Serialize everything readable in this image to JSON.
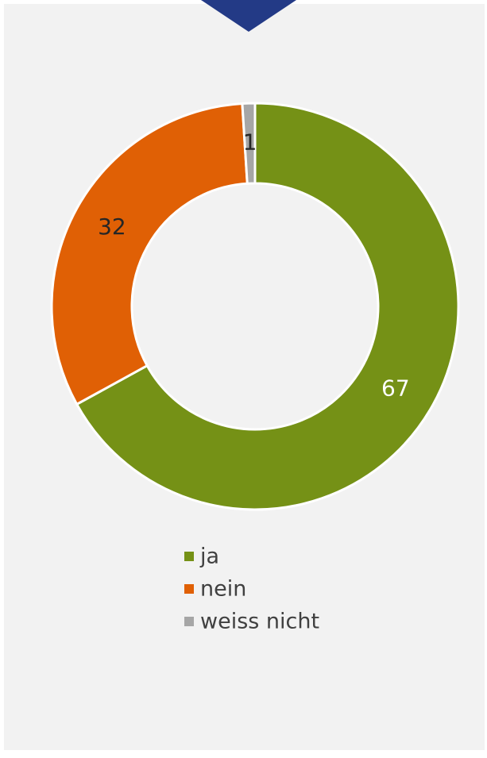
{
  "chart_data": {
    "type": "pie",
    "categories": [
      "ja",
      "nein",
      "weiss nicht"
    ],
    "values": [
      67,
      32,
      1
    ],
    "colors": [
      "#759116",
      "#e06005",
      "#a6a6a6"
    ],
    "label_colors": [
      "#ffffff",
      "#262626",
      "#262626"
    ],
    "donut": true,
    "legend": "bottom"
  }
}
